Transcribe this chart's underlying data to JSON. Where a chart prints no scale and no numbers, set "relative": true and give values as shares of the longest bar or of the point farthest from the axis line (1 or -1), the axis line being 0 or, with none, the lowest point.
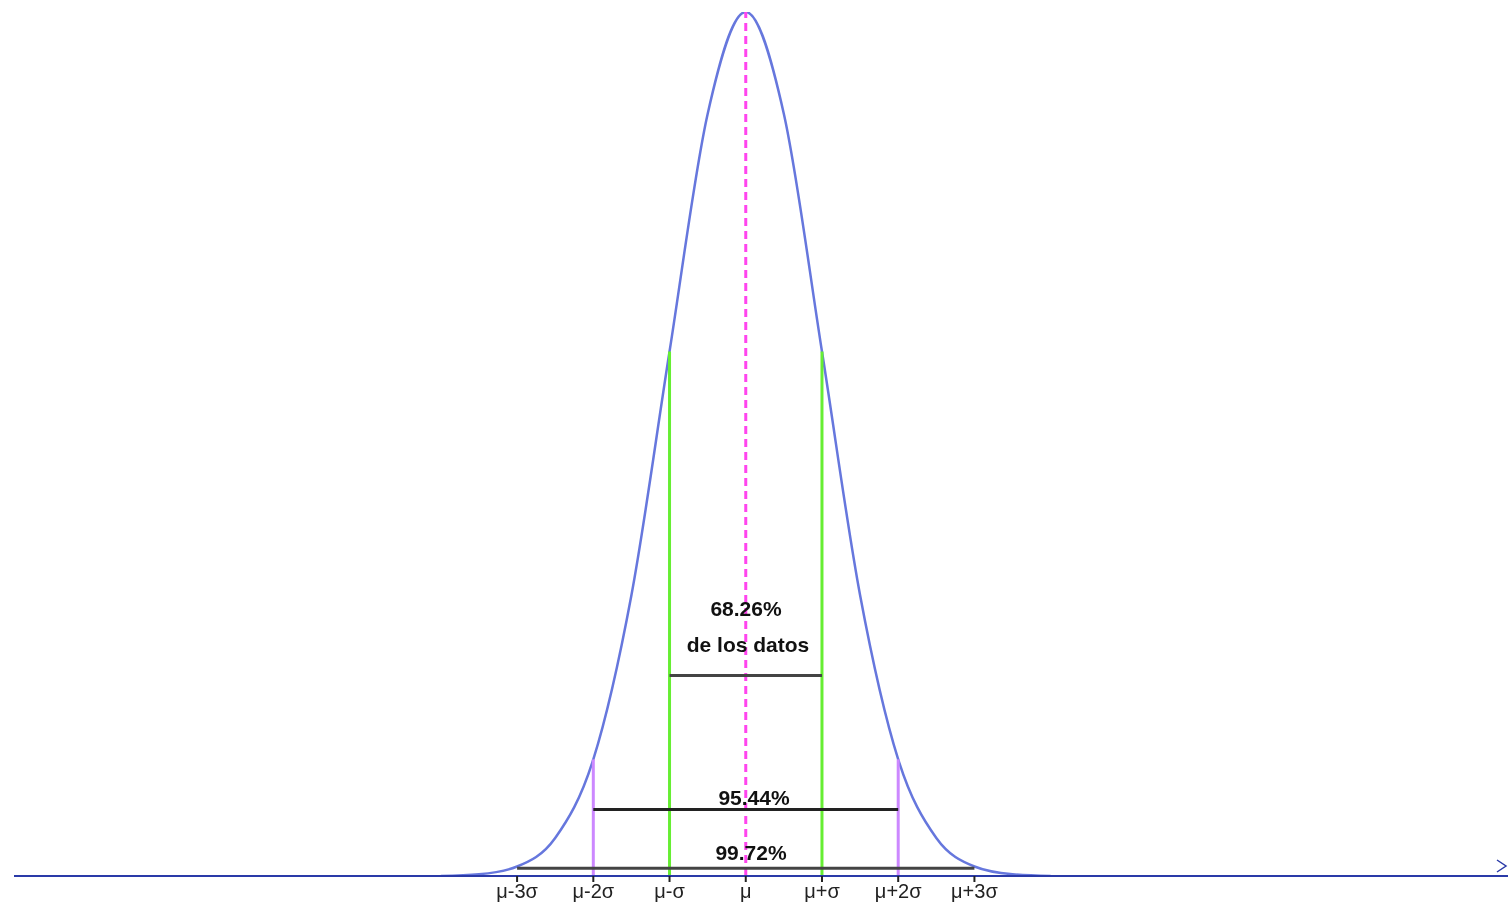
{
  "chart_data": {
    "type": "line",
    "relative": true,
    "marker": "none",
    "categories": [
      null,
      null,
      null,
      null,
      null,
      null,
      null,
      null,
      null,
      null,
      null,
      null,
      null,
      "μ-3σ",
      null,
      "μ-2σ",
      null,
      "μ-σ",
      null,
      "μ",
      null,
      "μ+σ",
      null,
      "μ+2σ",
      null,
      "μ+3σ",
      null,
      null,
      null,
      null,
      null,
      null,
      null,
      null,
      null,
      null,
      null,
      null,
      null,
      null
    ],
    "series": [
      {
        "color": "#6677dd",
        "line_style": "solid",
        "values": [
          null,
          null,
          null,
          null,
          null,
          null,
          null,
          null,
          null,
          null,
          null,
          0,
          0.002,
          0.011,
          0.044,
          0.135,
          0.325,
          0.607,
          0.882,
          1,
          0.882,
          0.607,
          0.325,
          0.135,
          0.044,
          0.011,
          0.002,
          0,
          null,
          null,
          null,
          null,
          null,
          null,
          null,
          null,
          null,
          null,
          null,
          null
        ]
      },
      {
        "color": "#66ee33",
        "line_style": "solid",
        "x": [
          "μ-σ",
          "μ-σ"
        ],
        "values": [
          0,
          0.607
        ]
      },
      {
        "color": "#66ee33",
        "line_style": "solid",
        "x": [
          "μ+σ",
          "μ+σ"
        ],
        "values": [
          0,
          0.607
        ]
      },
      {
        "color": "#cc88ff",
        "line_style": "solid",
        "x": [
          "μ-2σ",
          "μ-2σ"
        ],
        "values": [
          0,
          0.135
        ]
      },
      {
        "color": "#cc88ff",
        "line_style": "solid",
        "x": [
          "μ+2σ",
          "μ+2σ"
        ],
        "values": [
          0,
          0.135
        ]
      },
      {
        "color": "#ff44ee",
        "line_style": "dashed",
        "x": [
          "μ",
          "μ"
        ],
        "values": [
          0,
          1
        ]
      },
      {
        "color": "#444444",
        "line_style": "solid",
        "x": [
          "μ-σ",
          "μ+σ"
        ],
        "values": [
          0.232,
          0.232
        ]
      },
      {
        "color": "#222222",
        "line_style": "solid",
        "x": [
          "μ-2σ",
          "μ+2σ"
        ],
        "values": [
          0.077,
          0.077
        ]
      },
      {
        "color": "#444444",
        "line_style": "solid",
        "x": [
          "μ-3σ",
          "μ+3σ"
        ],
        "values": [
          0.009,
          0.009
        ]
      }
    ],
    "annotations": [
      "68.26%",
      "de los datos",
      "95.44%",
      "99.72%"
    ]
  }
}
